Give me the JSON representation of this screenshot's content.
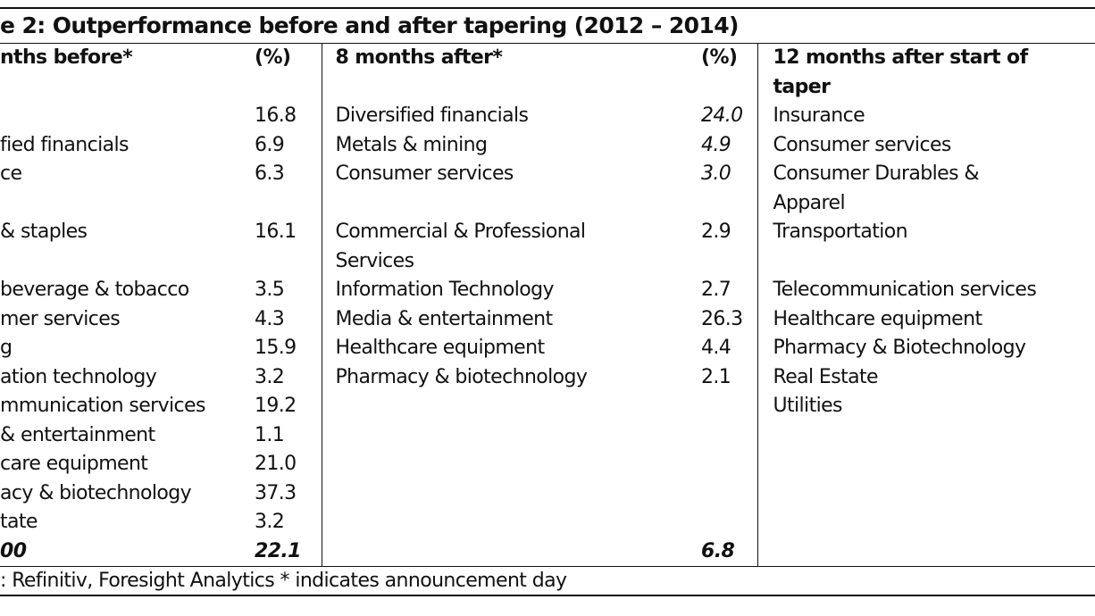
{
  "title": "e 2: Outperformance before and after tapering (2012 – 2014)",
  "table": {
    "header": [
      "nths before*",
      "(%)",
      "8 months after*",
      "(%)",
      "12 months after start of\ntaper"
    ],
    "rows": [
      [
        null,
        "16.8",
        "Diversified financials",
        "24.0",
        "Insurance"
      ],
      [
        "fied financials",
        "6.9",
        "Metals & mining",
        "4.9",
        "Consumer services"
      ],
      [
        "ce",
        "6.3",
        "Consumer services",
        "3.0",
        "Consumer Durables &\nApparel"
      ],
      [
        "& staples",
        "16.1",
        "Commercial & Professional\nServices",
        "2.9",
        "Transportation"
      ],
      [
        "beverage & tobacco",
        "3.5",
        "Information Technology",
        "2.7",
        "Telecommunication services"
      ],
      [
        "mer services",
        "4.3",
        "Media & entertainment",
        "26.3",
        "Healthcare equipment"
      ],
      [
        "g",
        "15.9",
        "Healthcare equipment",
        "4.4",
        "Pharmacy & Biotechnology"
      ],
      [
        "ation technology",
        "3.2",
        "Pharmacy & biotechnology",
        "2.1",
        "Real Estate"
      ],
      [
        "mmunication services",
        "19.2",
        null,
        null,
        "Utilities"
      ],
      [
        "& entertainment",
        "1.1",
        null,
        null,
        null
      ],
      [
        "care equipment",
        "21.0",
        null,
        null,
        null
      ],
      [
        "acy & biotechnology",
        "37.3",
        null,
        null,
        null
      ],
      [
        "tate",
        "3.2",
        null,
        null,
        null
      ]
    ],
    "total": [
      "00",
      "22.1",
      null,
      "6.8",
      null
    ]
  },
  "source": ": Refinitiv, Foresight Analytics * indicates announcement day"
}
